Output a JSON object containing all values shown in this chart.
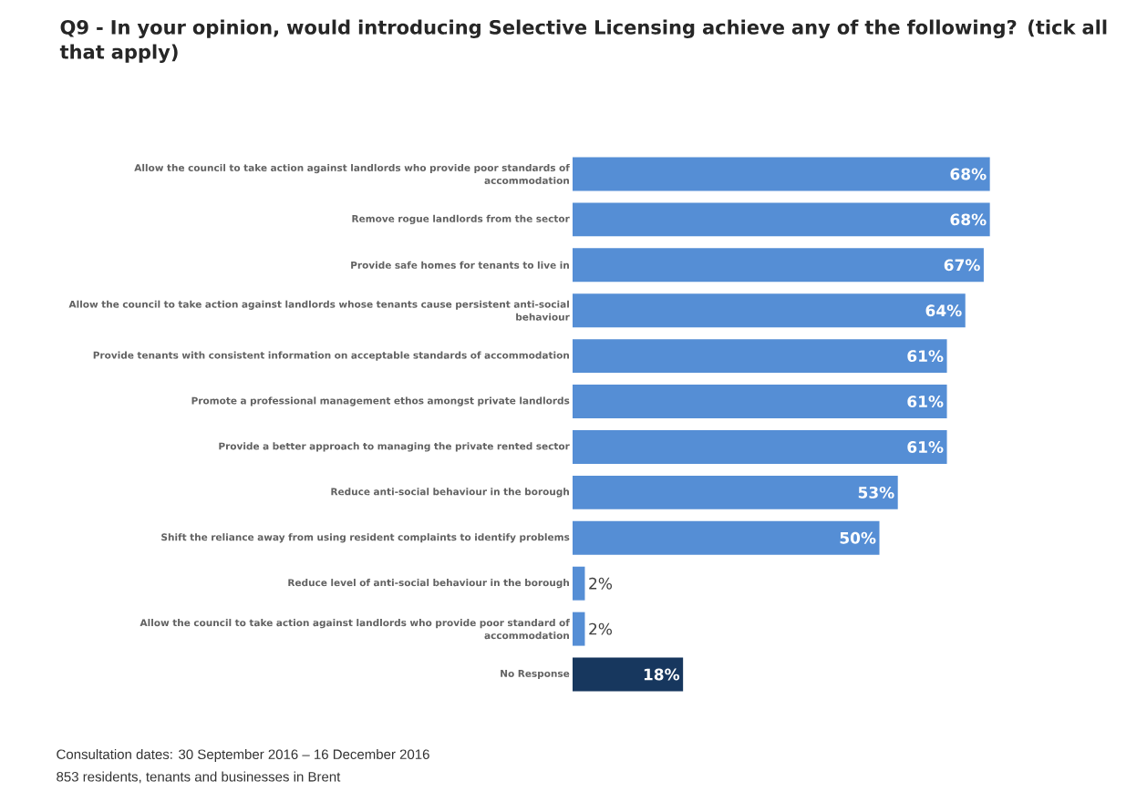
{
  "chart_data": {
    "type": "bar",
    "orientation": "horizontal",
    "title": "Q9 - In your opinion, would introducing Selective Licensing achieve any of the following? (tick all that apply)",
    "categories": [
      "Allow the council to take action against landlords who provide poor standards of accommodation",
      "Remove rogue landlords from the sector",
      "Provide safe homes for tenants to live in",
      "Allow the council to take action against landlords whose tenants cause persistent anti-social behaviour",
      "Provide tenants with consistent information on acceptable standards of accommodation",
      "Promote a professional management ethos amongst private landlords",
      "Provide a better approach to managing the private rented sector",
      "Reduce anti-social behaviour in the borough",
      "Shift the reliance away from using resident complaints to identify problems",
      "Reduce level of anti-social behaviour in the borough",
      "Allow the council to take action against landlords who provide poor standard of accommodation",
      "No Response"
    ],
    "values": [
      68,
      68,
      67,
      64,
      61,
      61,
      61,
      53,
      50,
      2,
      2,
      18
    ],
    "value_labels": [
      "68%",
      "68%",
      "67%",
      "64%",
      "61%",
      "61%",
      "61%",
      "53%",
      "50%",
      "2%",
      "2%",
      "18%"
    ],
    "colors": [
      "#558ed5",
      "#558ed5",
      "#558ed5",
      "#558ed5",
      "#558ed5",
      "#558ed5",
      "#558ed5",
      "#558ed5",
      "#558ed5",
      "#558ed5",
      "#558ed5",
      "#17375e"
    ],
    "annotations": [
      "Consultation dates: 30 September 2016 – 16 December 2016",
      "853 residents, tenants and businesses in Brent"
    ]
  }
}
